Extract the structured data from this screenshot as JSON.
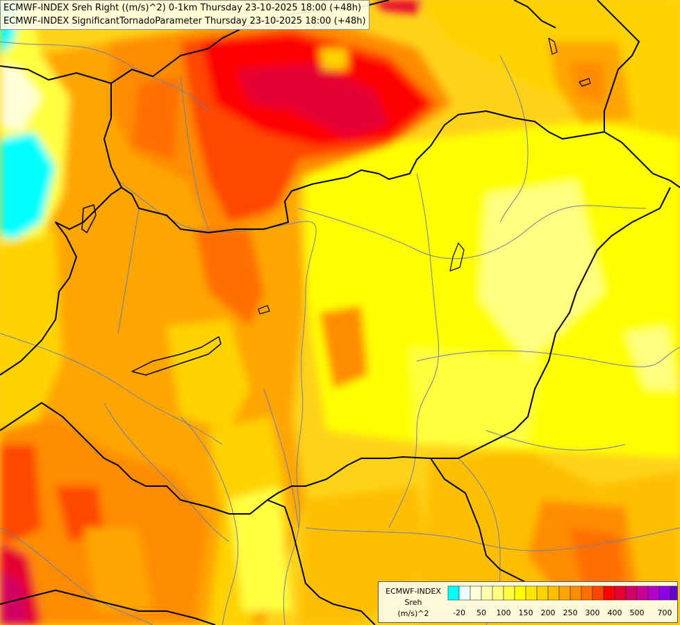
{
  "titles": {
    "line1": "ECMWF-INDEX Sreh Right ((m/s)^2) 0-1km Thursday 23-10-2025 18:00 (+48h)",
    "line2": "ECMWF-INDEX SignificantTornadoParameter Thursday 23-10-2025 18:00 (+48h)"
  },
  "legend": {
    "model": "ECMWF-INDEX",
    "parameter": "Sreh",
    "unit": "(m/s)^2",
    "colors": [
      "#00ffff",
      "#e8ffff",
      "#ffffd8",
      "#ffffb0",
      "#ffff80",
      "#ffff40",
      "#ffff00",
      "#ffe600",
      "#ffd200",
      "#ffbe00",
      "#ffa500",
      "#ff8c00",
      "#ff6e00",
      "#ff4600",
      "#ff0000",
      "#e60032",
      "#d20064",
      "#c80096",
      "#b400c8",
      "#8c00e6",
      "#6400d2",
      "#3200b4",
      "#000096"
    ],
    "ticks": [
      "-20",
      "50",
      "100",
      "150",
      "200",
      "250",
      "300",
      "400",
      "500",
      "700"
    ]
  },
  "map": {
    "field_colors": {
      "base": "#ffd21a",
      "yellow": "#ffff00",
      "light_yellow": "#ffff80",
      "orange": "#ffa500",
      "dark_orange": "#ff8c00",
      "red_orange": "#ff4600",
      "red": "#ff0000",
      "crimson": "#e60032",
      "magenta": "#d20064",
      "cyan": "#00ffff",
      "pale": "#ffffd8"
    },
    "border_color": "#000000",
    "river_color": "#6f7f9f"
  }
}
